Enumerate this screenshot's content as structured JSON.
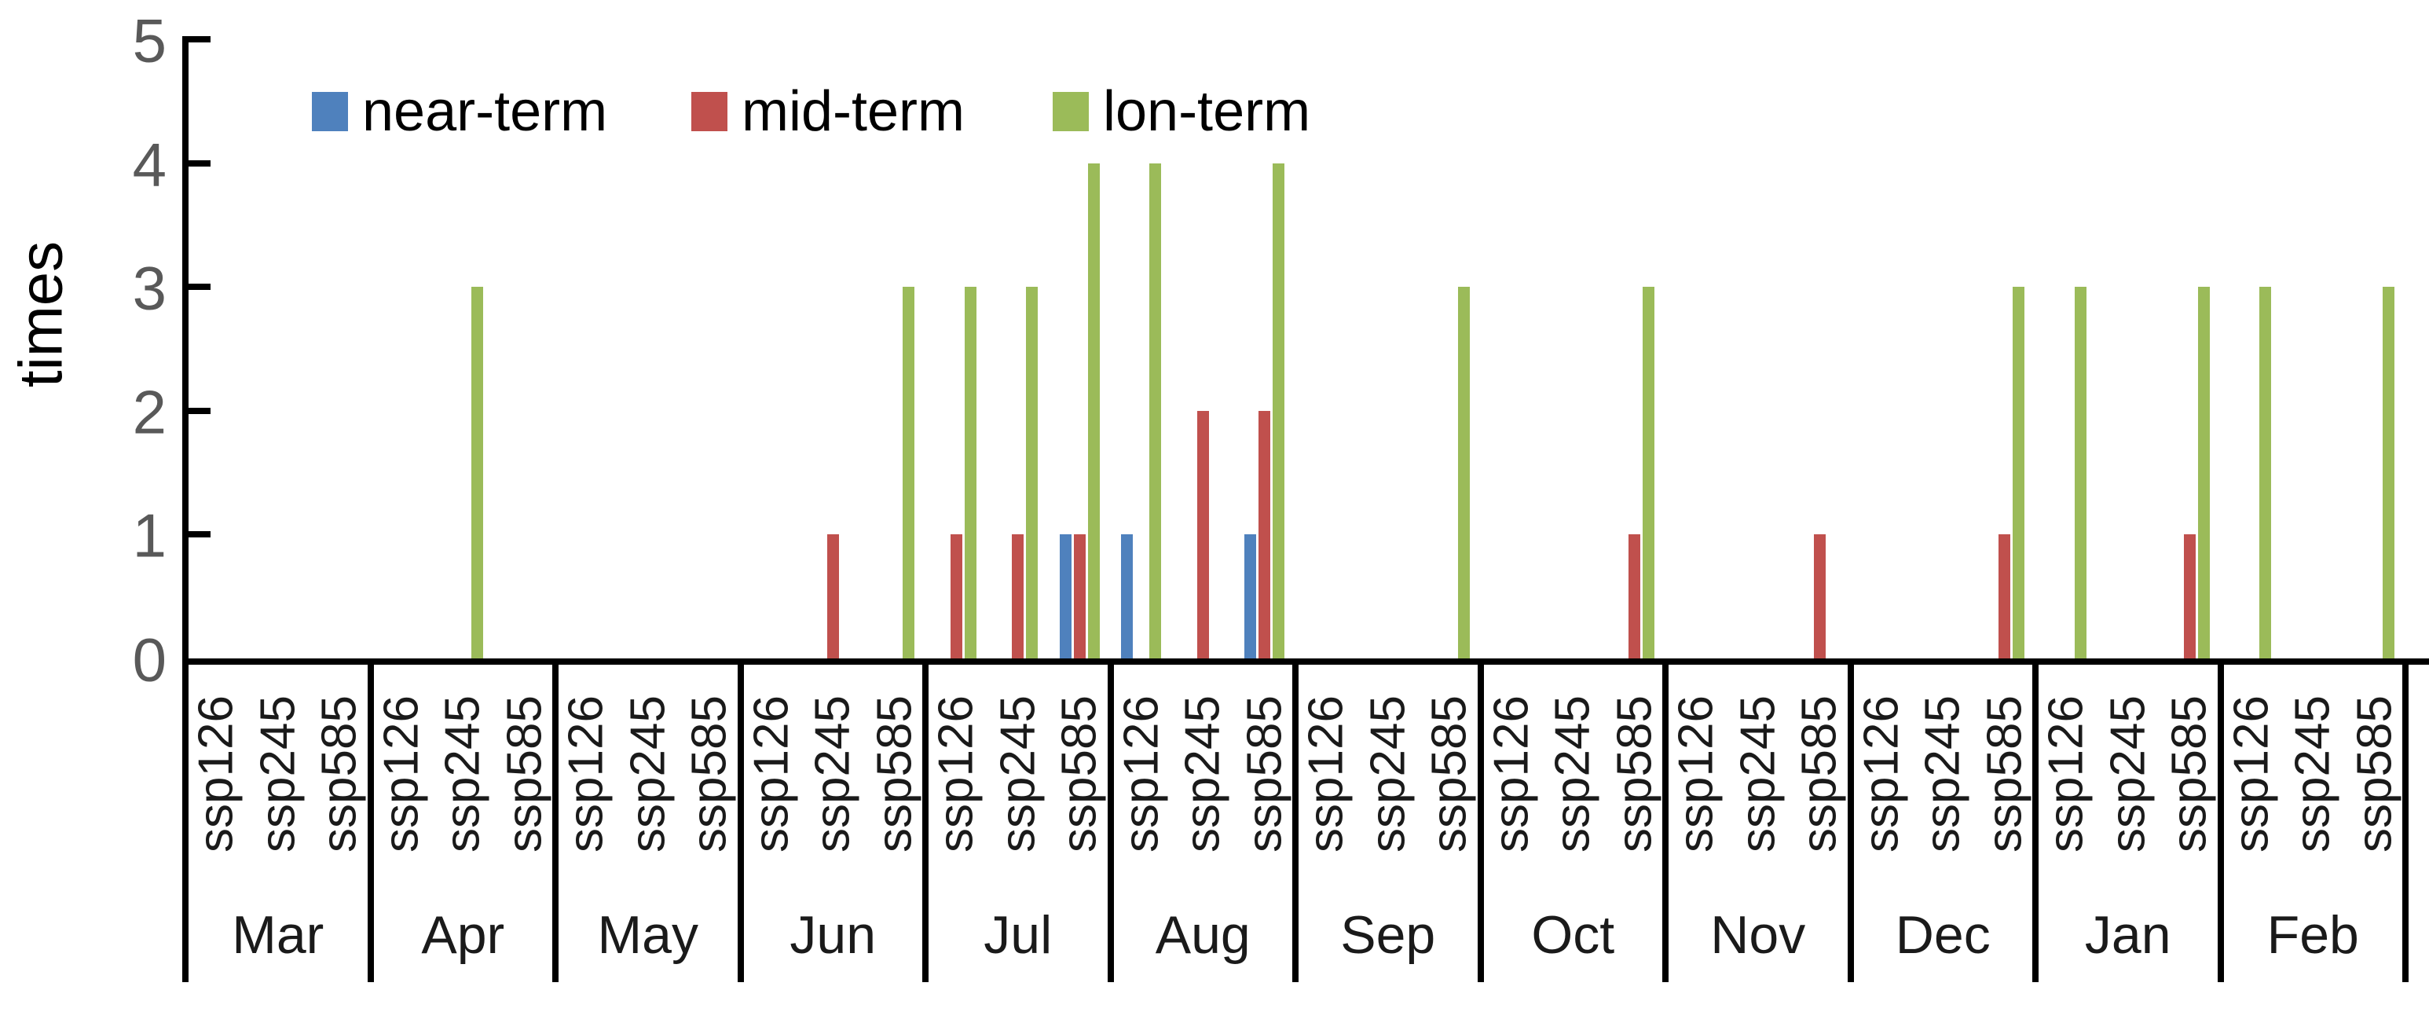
{
  "figure": {
    "y_axis_title": "times",
    "legend": [
      {
        "label": "near-term",
        "color": "#4F81BD"
      },
      {
        "label": "mid-term",
        "color": "#C0504D"
      },
      {
        "label": "lon-term",
        "color": "#9BBB59"
      }
    ]
  },
  "chart_data": {
    "type": "bar",
    "title": "",
    "xlabel": "",
    "ylabel": "times",
    "ylim": [
      0,
      5
    ],
    "yticks": [
      0,
      1,
      2,
      3,
      4,
      5
    ],
    "grid": false,
    "legend_position": "top-left inside plot",
    "tick_marks": "inside",
    "categories_level1": [
      "Mar",
      "Apr",
      "May",
      "Jun",
      "Jul",
      "Aug",
      "Sep",
      "Oct",
      "Nov",
      "Dec",
      "Jan",
      "Feb"
    ],
    "categories_level2": [
      "ssp126",
      "ssp245",
      "ssp585"
    ],
    "series": [
      {
        "name": "near-term",
        "color": "#4F81BD",
        "values": [
          [
            0,
            0,
            0
          ],
          [
            0,
            0,
            0
          ],
          [
            0,
            0,
            0
          ],
          [
            0,
            0,
            0
          ],
          [
            0,
            0,
            1
          ],
          [
            1,
            0,
            1
          ],
          [
            0,
            0,
            0
          ],
          [
            0,
            0,
            0
          ],
          [
            0,
            0,
            0
          ],
          [
            0,
            0,
            0
          ],
          [
            0,
            0,
            0
          ],
          [
            0,
            0,
            0
          ]
        ]
      },
      {
        "name": "mid-term",
        "color": "#C0504D",
        "values": [
          [
            0,
            0,
            0
          ],
          [
            0,
            0,
            0
          ],
          [
            0,
            0,
            0
          ],
          [
            0,
            1,
            0
          ],
          [
            1,
            1,
            1
          ],
          [
            0,
            2,
            2
          ],
          [
            0,
            0,
            0
          ],
          [
            0,
            0,
            1
          ],
          [
            0,
            0,
            1
          ],
          [
            0,
            0,
            1
          ],
          [
            0,
            0,
            1
          ],
          [
            0,
            0,
            0
          ]
        ]
      },
      {
        "name": "lon-term",
        "color": "#9BBB59",
        "values": [
          [
            0,
            0,
            0
          ],
          [
            0,
            3,
            0
          ],
          [
            0,
            0,
            0
          ],
          [
            0,
            0,
            3
          ],
          [
            3,
            3,
            4
          ],
          [
            4,
            0,
            4
          ],
          [
            0,
            0,
            3
          ],
          [
            0,
            0,
            3
          ],
          [
            0,
            0,
            0
          ],
          [
            0,
            0,
            3
          ],
          [
            3,
            0,
            3
          ],
          [
            3,
            0,
            3
          ]
        ]
      }
    ]
  }
}
